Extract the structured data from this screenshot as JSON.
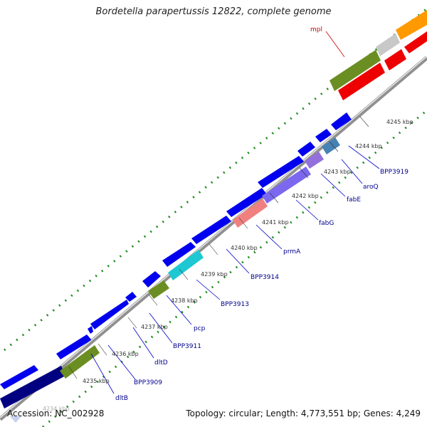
{
  "title": "Bordetella parapertussis 12822, complete genome",
  "accession": "Accession: NC_002928",
  "summary": "Topology: circular; Length: 4,773,551 bp; Genes: 4,249",
  "colors": {
    "ruler_dots": "#1f8a1f",
    "backbone": "#909090",
    "label_blue": "#00008b",
    "label_red": "#cc0000",
    "gene_blue": "#0000ee",
    "gene_olive": "#6b8e23",
    "gene_red": "#ee0000",
    "gene_orange": "#ff9900",
    "gene_gray": "#c8c8c8",
    "gene_cyan": "#1ec8d2",
    "gene_pink": "#f08080",
    "gene_purple": "#7b68ee",
    "gene_steel": "#4682b4",
    "gene_navy": "#000080"
  },
  "ticks": [
    "4234 kbp",
    "4235 kbp",
    "4236 kbp",
    "4237 kbp",
    "4238 kbp",
    "4239 kbp",
    "4240 kbp",
    "4241 kbp",
    "4242 kbp",
    "4243 kbp",
    "4244 kbp",
    "4245 kbp"
  ],
  "gene_labels": [
    "dltB",
    "BPP3909",
    "dltD",
    "BPP3911",
    "pcp",
    "BPP3913",
    "BPP3914",
    "prmA",
    "fabG",
    "fabE",
    "aroQ",
    "BPP3919",
    "mpl"
  ]
}
